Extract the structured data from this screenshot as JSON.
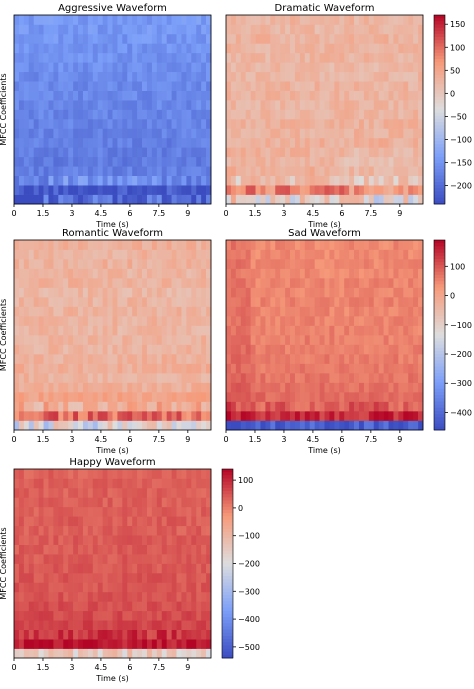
{
  "chart_data": [
    {
      "type": "heatmap",
      "title": "Aggressive Waveform",
      "xlabel": "Time (s)",
      "ylabel": "MFCC Coefficients",
      "xticks": [
        "0",
        "1.5",
        "3",
        "4.5",
        "6",
        "7.5",
        "9"
      ],
      "xlim": [
        0,
        10.2
      ],
      "n_rows": 20,
      "n_cols": 40,
      "base_value": -175,
      "row_values": [
        -212,
        -232,
        -160,
        -178,
        -182,
        -178,
        -176,
        -174,
        -172,
        -170,
        -168,
        -166,
        -164,
        -162,
        -158,
        -156,
        -154,
        -150,
        -148,
        -145
      ],
      "colorbar": {
        "ticks": [
          150,
          100,
          50,
          0,
          -50,
          -100,
          -150,
          -200
        ],
        "vmin": -240,
        "vmax": 170
      }
    },
    {
      "type": "heatmap",
      "title": "Dramatic Waveform",
      "xlabel": "Time (s)",
      "ylabel": "",
      "xticks": [
        "0",
        "1.5",
        "3",
        "4.5",
        "6",
        "7.5",
        "9"
      ],
      "xlim": [
        0,
        10.2
      ],
      "n_rows": 20,
      "n_cols": 40,
      "base_value": 30,
      "row_values": [
        -10,
        80,
        8,
        36,
        26,
        32,
        34,
        30,
        32,
        28,
        26,
        30,
        28,
        24,
        22,
        26,
        28,
        30,
        24,
        26
      ],
      "events": [
        {
          "x_from": 6.0,
          "x_to": 10.2,
          "row_to": 6,
          "delta": -12
        }
      ],
      "colorbar": null
    },
    {
      "type": "heatmap",
      "title": "Romantic Waveform",
      "xlabel": "Time (s)",
      "ylabel": "MFCC Coefficients",
      "xticks": [
        "0",
        "1.5",
        "3",
        "4.5",
        "6",
        "7.5",
        "9"
      ],
      "xlim": [
        0,
        10.2
      ],
      "n_rows": 20,
      "n_cols": 40,
      "base_value": 28,
      "row_values": [
        -40,
        95,
        40,
        55,
        38,
        30,
        36,
        32,
        28,
        30,
        26,
        28,
        30,
        26,
        24,
        30,
        28,
        32,
        30,
        34
      ],
      "colorbar": null
    },
    {
      "type": "heatmap",
      "title": "Sad Waveform",
      "xlabel": "Time (s)",
      "ylabel": "",
      "xticks": [
        "0",
        "1.5",
        "3",
        "4.5",
        "6",
        "7.5",
        "9"
      ],
      "xlim": [
        0,
        10.2
      ],
      "n_rows": 20,
      "n_cols": 40,
      "base_value": 60,
      "row_values": [
        -430,
        150,
        95,
        80,
        72,
        68,
        62,
        60,
        58,
        56,
        54,
        52,
        50,
        52,
        48,
        50,
        46,
        48,
        44,
        46
      ],
      "events": [
        {
          "x_from": 0,
          "x_to": 1.2,
          "row_from": 1,
          "delta": 20
        },
        {
          "x_from": 5.4,
          "x_to": 5.8,
          "delta": 0
        }
      ],
      "colorbar": {
        "ticks": [
          100,
          0,
          -100,
          -200,
          -300,
          -400
        ],
        "vmin": -460,
        "vmax": 190
      }
    },
    {
      "type": "heatmap",
      "title": "Happy Waveform",
      "xlabel": "Time (s)",
      "ylabel": "MFCC Coefficients",
      "xticks": [
        "0",
        "1.5",
        "3",
        "4.5",
        "6",
        "7.5",
        "9"
      ],
      "xlim": [
        0,
        10.2
      ],
      "n_rows": 20,
      "n_cols": 40,
      "base_value": 40,
      "row_values": [
        -150,
        120,
        85,
        70,
        60,
        55,
        50,
        48,
        46,
        44,
        42,
        40,
        42,
        38,
        40,
        36,
        38,
        34,
        36,
        32
      ],
      "colorbar": {
        "ticks": [
          100,
          0,
          -100,
          -200,
          -300,
          -400,
          -500
        ],
        "vmin": -540,
        "vmax": 140
      }
    }
  ]
}
